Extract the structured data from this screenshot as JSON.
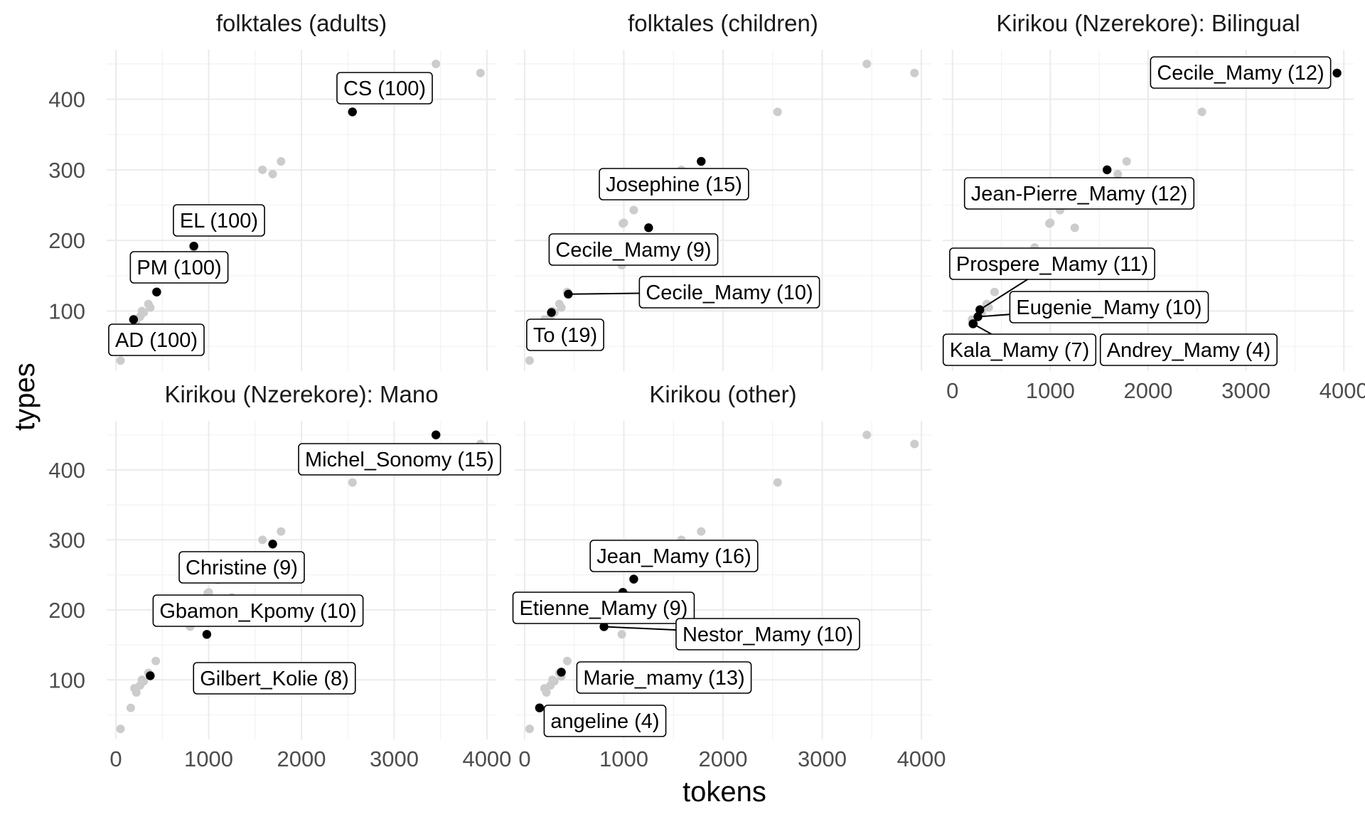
{
  "chart_data": {
    "type": "scatter",
    "x_label": "tokens",
    "y_label": "types",
    "x_ticks": [
      0,
      1000,
      2000,
      3000,
      4000
    ],
    "y_ticks": [
      100,
      200,
      300,
      400
    ],
    "xlim": [
      -100,
      4100
    ],
    "ylim": [
      15,
      470
    ],
    "colors": {
      "background_point": "#cccccc",
      "highlight_point": "#000000",
      "grid": "#ebebeb"
    },
    "all_points": [
      {
        "x": 50,
        "y": 30
      },
      {
        "x": 160,
        "y": 60
      },
      {
        "x": 200,
        "y": 88
      },
      {
        "x": 220,
        "y": 82
      },
      {
        "x": 260,
        "y": 92
      },
      {
        "x": 280,
        "y": 100
      },
      {
        "x": 300,
        "y": 98
      },
      {
        "x": 350,
        "y": 110
      },
      {
        "x": 370,
        "y": 105
      },
      {
        "x": 430,
        "y": 127
      },
      {
        "x": 800,
        "y": 176
      },
      {
        "x": 840,
        "y": 190
      },
      {
        "x": 980,
        "y": 165
      },
      {
        "x": 990,
        "y": 224
      },
      {
        "x": 1000,
        "y": 225
      },
      {
        "x": 1100,
        "y": 243
      },
      {
        "x": 1250,
        "y": 218
      },
      {
        "x": 1580,
        "y": 300
      },
      {
        "x": 1690,
        "y": 294
      },
      {
        "x": 1780,
        "y": 312
      },
      {
        "x": 2550,
        "y": 382
      },
      {
        "x": 3450,
        "y": 450
      },
      {
        "x": 3930,
        "y": 437
      }
    ],
    "facets": [
      {
        "title": "folktales (adults)",
        "highlights": [
          {
            "x": 2550,
            "y": 382,
            "label": "CS (100)"
          },
          {
            "x": 840,
            "y": 192,
            "label": "EL (100)"
          },
          {
            "x": 440,
            "y": 127,
            "label": "PM (100)"
          },
          {
            "x": 190,
            "y": 88,
            "label": "AD (100)"
          }
        ]
      },
      {
        "title": "folktales (children)",
        "highlights": [
          {
            "x": 1780,
            "y": 312,
            "label": "Josephine (15)"
          },
          {
            "x": 1250,
            "y": 218,
            "label": "Cecile_Mamy (9)"
          },
          {
            "x": 440,
            "y": 124,
            "label": "Cecile_Mamy (10)"
          },
          {
            "x": 270,
            "y": 98,
            "label": "To (19)"
          }
        ]
      },
      {
        "title": "Kirikou (Nzerekore): Bilingual",
        "highlights": [
          {
            "x": 3930,
            "y": 437,
            "label": "Cecile_Mamy (12)"
          },
          {
            "x": 1580,
            "y": 300,
            "label": "Jean-Pierre_Mamy (12)"
          },
          {
            "x": 280,
            "y": 102,
            "label": "Prospere_Mamy (11)"
          },
          {
            "x": 260,
            "y": 92,
            "label": "Eugenie_Mamy (10)"
          },
          {
            "x": 210,
            "y": 82,
            "label": "Kala_Mamy (7)"
          },
          {
            "x": 210,
            "y": 82,
            "label": "Andrey_Mamy (4)"
          }
        ]
      },
      {
        "title": "Kirikou (Nzerekore): Mano",
        "highlights": [
          {
            "x": 3450,
            "y": 450,
            "label": "Michel_Sonomy (15)"
          },
          {
            "x": 1690,
            "y": 294,
            "label": "Christine (9)"
          },
          {
            "x": 980,
            "y": 165,
            "label": "Gbamon_Kpomy (10)"
          },
          {
            "x": 370,
            "y": 106,
            "label": "Gilbert_Kolie (8)"
          }
        ]
      },
      {
        "title": "Kirikou (other)",
        "highlights": [
          {
            "x": 1100,
            "y": 244,
            "label": "Jean_Mamy (16)"
          },
          {
            "x": 990,
            "y": 225,
            "label": "Etienne_Mamy (9)"
          },
          {
            "x": 800,
            "y": 176,
            "label": "Nestor_Mamy (10)"
          },
          {
            "x": 370,
            "y": 111,
            "label": "Marie_mamy (13)"
          },
          {
            "x": 150,
            "y": 60,
            "label": "angeline (4)"
          }
        ]
      }
    ]
  }
}
